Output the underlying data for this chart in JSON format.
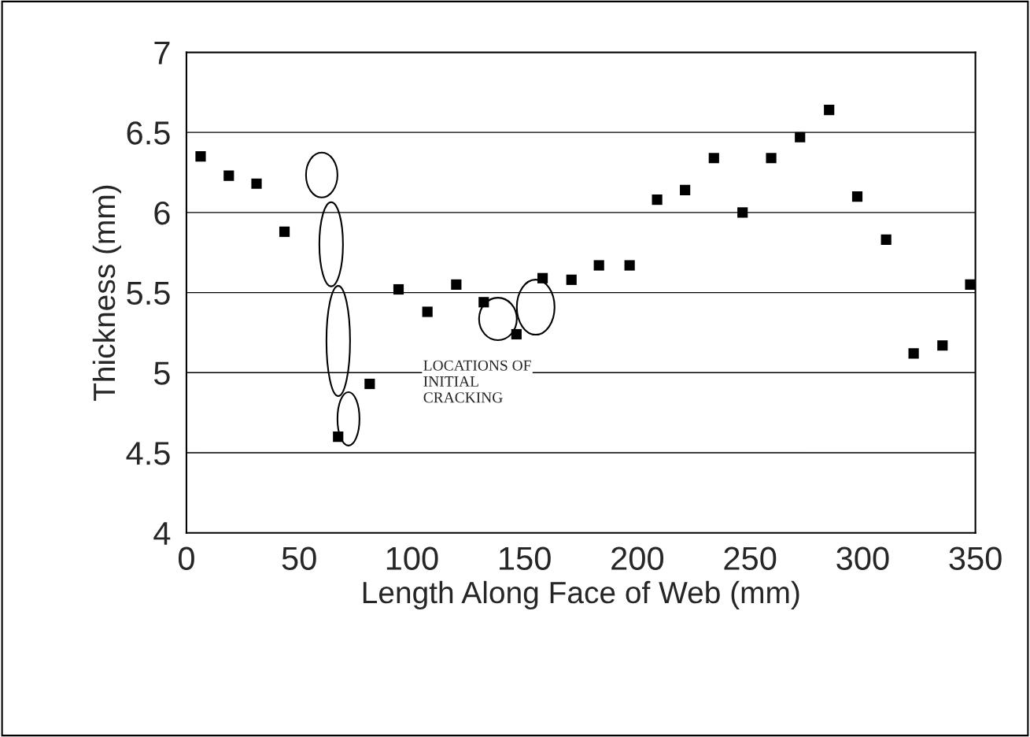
{
  "chart_data": {
    "type": "scatter",
    "xlabel": "Length Along Face of Web (mm)",
    "ylabel": "Thickness (mm)",
    "annotations": [
      "LOCATIONS OF\nINITIAL\nCRACKING"
    ],
    "series": [
      {
        "color": "#000000",
        "x": [
          6.3,
          18.8,
          31.1,
          43.5,
          67.3,
          81.3,
          94.1,
          106.9,
          119.7,
          131.9,
          146.4,
          158,
          170.8,
          183,
          196.6,
          208.8,
          221.2,
          234,
          246.7,
          259.4,
          272.2,
          285.1,
          297.6,
          310.4,
          322.6,
          335.4,
          347.7
        ],
        "values": [
          6.35,
          6.23,
          6.18,
          5.88,
          4.6,
          4.93,
          5.52,
          5.38,
          5.55,
          5.44,
          5.24,
          5.59,
          5.58,
          5.67,
          5.67,
          6.08,
          6.14,
          6.34,
          6.0,
          6.34,
          6.47,
          6.64,
          6.1,
          5.83,
          5.12,
          5.17,
          5.55
        ]
      }
    ],
    "marker": "square",
    "xlim": [
      0,
      350
    ],
    "ylim": [
      4,
      7
    ],
    "xticks": [
      0,
      50,
      100,
      150,
      200,
      250,
      300,
      350
    ],
    "yticks": [
      4,
      4.5,
      5,
      5.5,
      6,
      6.5,
      7
    ],
    "grid": "y"
  }
}
